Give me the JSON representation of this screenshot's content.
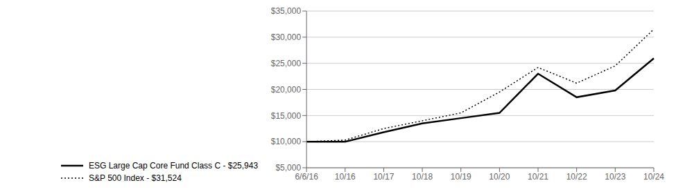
{
  "chart_data": {
    "type": "line",
    "title": "",
    "categories": [
      "6/6/16",
      "10/16",
      "10/17",
      "10/18",
      "10/19",
      "10/20",
      "10/21",
      "10/22",
      "10/23",
      "10/24"
    ],
    "series": [
      {
        "name": "ESG Large Cap Core Fund Class C - $25,943",
        "color": "#000000",
        "line_style": "solid",
        "values": [
          10000,
          10000,
          11800,
          13500,
          14500,
          15500,
          23000,
          18500,
          19800,
          25943
        ]
      },
      {
        "name": "S&P 500 Index - $31,524",
        "color": "#000000",
        "line_style": "dotted",
        "values": [
          10000,
          10300,
          12500,
          14000,
          15500,
          19500,
          24200,
          21200,
          24500,
          31524
        ]
      }
    ],
    "ylim": [
      5000,
      35000
    ],
    "yticks": [
      {
        "value": 5000,
        "label": "$5,000"
      },
      {
        "value": 10000,
        "label": "$10,000"
      },
      {
        "value": 15000,
        "label": "$15,000"
      },
      {
        "value": 20000,
        "label": "$20,000"
      },
      {
        "value": 25000,
        "label": "$25,000"
      },
      {
        "value": 30000,
        "label": "$30,000"
      },
      {
        "value": 35000,
        "label": "$35,000"
      }
    ],
    "grid": true,
    "legend": "bottom"
  }
}
